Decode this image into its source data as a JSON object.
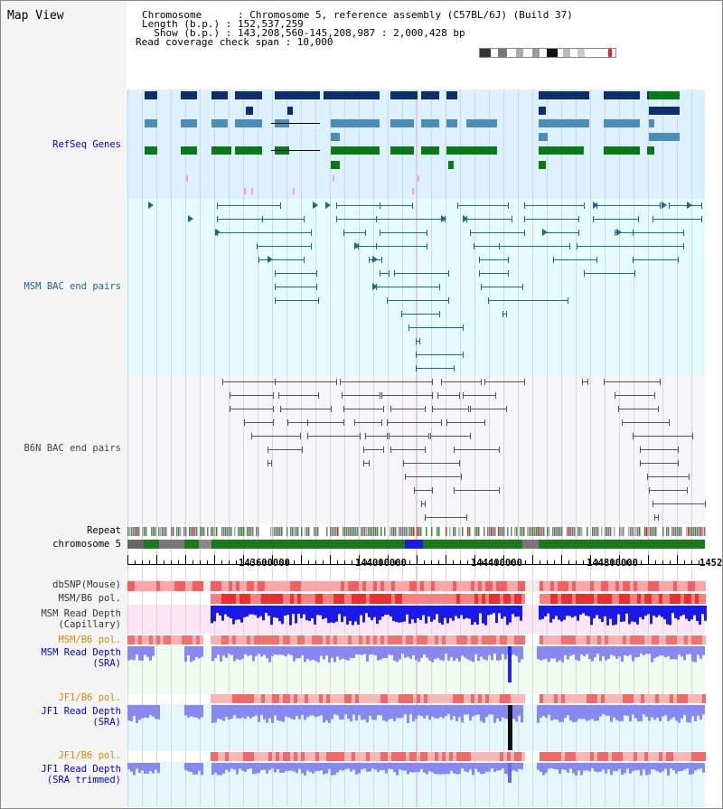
{
  "view": {
    "title": "Map View"
  },
  "header": {
    "chromosome_line": "Chromosome      : Chromosome 5, reference assembly (C57BL/6J) (Build 37)",
    "length_line": "Length (b.p.) : 152,537,259",
    "show_line": "  Show (b.p.) : 143,208,560-145,208,987 : 2,000,428 bp",
    "coverage_line": "Read coverage check span : 10,000"
  },
  "tracks": {
    "refseq": "RefSeq Genes",
    "msm_bac": "MSM BAC end pairs",
    "b6n_bac": "B6N BAC end pairs",
    "repeat": "Repeat",
    "chromosome": "chromosome 5",
    "dbsnp": "dbSNP(Mouse)",
    "msm_b6_pol": "MSM/B6 pol.",
    "msm_depth_cap_1": "MSM Read Depth",
    "msm_depth_cap_2": "(Capillary)",
    "msm_b6_pol_2": "MSM/B6 pol.",
    "msm_depth_sra_1": "MSM Read Depth",
    "msm_depth_sra_2": "(SRA)",
    "jf1_b6_pol": "JF1/B6 pol.",
    "jf1_depth_sra_1": "JF1 Read Depth",
    "jf1_depth_sra_2": "(SRA)",
    "jf1_b6_pol_2": "JF1/B6 pol.",
    "jf1_depth_trim_1": "JF1 Read Depth",
    "jf1_depth_trim_2": "(SRA trimmed)"
  },
  "ruler": {
    "ticks": [
      "143600000",
      "144000000",
      "144400000",
      "144800000",
      "1452"
    ]
  },
  "colors": {
    "refseq_dark": "#0d2f6e",
    "refseq_mid": "#4a8eb8",
    "refseq_green": "#0a7a18",
    "msm_bac": "#1a6a8a",
    "b6n_bac": "#555555",
    "label_blue": "#0000cc",
    "label_msm": "#1a6a8a",
    "label_orange": "#dd8800"
  }
}
